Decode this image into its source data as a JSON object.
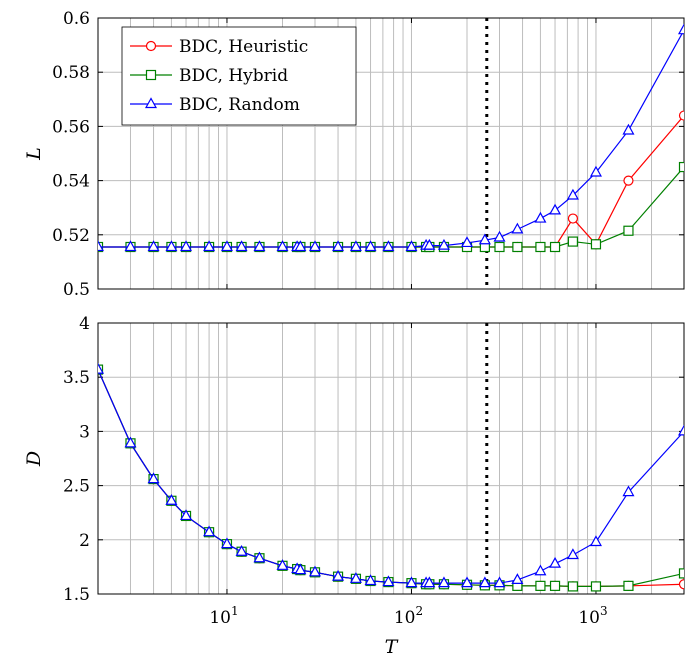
{
  "chart_data": [
    {
      "type": "line",
      "id": "top",
      "ylabel": "L",
      "xscale": "log",
      "xlim": [
        2,
        3000
      ],
      "ylim": [
        0.5,
        0.6
      ],
      "yticks": [
        "0.5",
        "0.52",
        "0.54",
        "0.56",
        "0.58",
        "0.6"
      ],
      "ytick_values": [
        0.5,
        0.52,
        0.54,
        0.56,
        0.58,
        0.6
      ],
      "grid": true,
      "vline_x": 256,
      "legend_position": "top-left",
      "series": [
        {
          "name": "BDC, Heuristic",
          "color": "#ff0000",
          "marker": "circle",
          "x": [
            2,
            3,
            4,
            5,
            6,
            8,
            10,
            12,
            15,
            20,
            24,
            25,
            30,
            40,
            50,
            60,
            75,
            100,
            120,
            125,
            150,
            200,
            250,
            300,
            375,
            500,
            600,
            750,
            1000,
            1500,
            3000
          ],
          "y": [
            0.5155,
            0.5155,
            0.5155,
            0.5155,
            0.5155,
            0.5155,
            0.5155,
            0.5155,
            0.5155,
            0.5155,
            0.5155,
            0.5155,
            0.5155,
            0.5155,
            0.5155,
            0.5155,
            0.5155,
            0.5155,
            0.5155,
            0.5155,
            0.5155,
            0.5155,
            0.5155,
            0.5155,
            0.5155,
            0.5155,
            0.5155,
            0.526,
            0.5165,
            0.54,
            0.564
          ]
        },
        {
          "name": "BDC, Hybrid",
          "color": "#008000",
          "marker": "square",
          "x": [
            2,
            3,
            4,
            5,
            6,
            8,
            10,
            12,
            15,
            20,
            24,
            25,
            30,
            40,
            50,
            60,
            75,
            100,
            120,
            125,
            150,
            200,
            250,
            300,
            375,
            500,
            600,
            750,
            1000,
            1500,
            3000
          ],
          "y": [
            0.5155,
            0.5155,
            0.5155,
            0.5155,
            0.5155,
            0.5155,
            0.5155,
            0.5155,
            0.5155,
            0.5155,
            0.5155,
            0.5155,
            0.5155,
            0.5155,
            0.5155,
            0.5155,
            0.5155,
            0.5155,
            0.5155,
            0.5155,
            0.5155,
            0.5155,
            0.5155,
            0.5155,
            0.5155,
            0.5155,
            0.5155,
            0.5175,
            0.5165,
            0.5215,
            0.545
          ]
        },
        {
          "name": "BDC, Random",
          "color": "#0000ff",
          "marker": "triangle",
          "x": [
            2,
            3,
            4,
            5,
            6,
            8,
            10,
            12,
            15,
            20,
            24,
            25,
            30,
            40,
            50,
            60,
            75,
            100,
            120,
            125,
            150,
            200,
            250,
            300,
            375,
            500,
            600,
            750,
            1000,
            1500,
            3000
          ],
          "y": [
            0.5155,
            0.5155,
            0.5155,
            0.5155,
            0.5155,
            0.5155,
            0.5155,
            0.5155,
            0.5155,
            0.5155,
            0.5155,
            0.5155,
            0.5155,
            0.5155,
            0.5155,
            0.5155,
            0.5155,
            0.5155,
            0.516,
            0.516,
            0.516,
            0.517,
            0.518,
            0.519,
            0.522,
            0.526,
            0.529,
            0.5345,
            0.543,
            0.5585,
            0.5955
          ]
        }
      ]
    },
    {
      "type": "line",
      "id": "bottom",
      "xlabel": "T",
      "ylabel": "D",
      "xscale": "log",
      "xlim": [
        2,
        3000
      ],
      "ylim": [
        1.5,
        4
      ],
      "yticks": [
        "1.5",
        "2",
        "2.5",
        "3",
        "3.5",
        "4"
      ],
      "ytick_values": [
        1.5,
        2,
        2.5,
        3,
        3.5,
        4
      ],
      "xticks": [
        {
          "value": 10,
          "base": "10",
          "exp": "1"
        },
        {
          "value": 100,
          "base": "10",
          "exp": "2"
        },
        {
          "value": 1000,
          "base": "10",
          "exp": "3"
        }
      ],
      "grid": true,
      "vline_x": 256,
      "series": [
        {
          "name": "BDC, Heuristic",
          "color": "#ff0000",
          "marker": "circle",
          "x": [
            2,
            3,
            4,
            5,
            6,
            8,
            10,
            12,
            15,
            20,
            24,
            25,
            30,
            40,
            50,
            60,
            75,
            100,
            120,
            125,
            150,
            200,
            250,
            300,
            375,
            500,
            600,
            750,
            1000,
            1500,
            3000
          ],
          "y": [
            3.57,
            2.89,
            2.56,
            2.36,
            2.22,
            2.07,
            1.96,
            1.89,
            1.83,
            1.76,
            1.73,
            1.72,
            1.7,
            1.66,
            1.64,
            1.62,
            1.61,
            1.6,
            1.59,
            1.59,
            1.59,
            1.585,
            1.58,
            1.58,
            1.575,
            1.575,
            1.575,
            1.57,
            1.57,
            1.575,
            1.59
          ]
        },
        {
          "name": "BDC, Hybrid",
          "color": "#008000",
          "marker": "square",
          "x": [
            2,
            3,
            4,
            5,
            6,
            8,
            10,
            12,
            15,
            20,
            24,
            25,
            30,
            40,
            50,
            60,
            75,
            100,
            120,
            125,
            150,
            200,
            250,
            300,
            375,
            500,
            600,
            750,
            1000,
            1500,
            3000
          ],
          "y": [
            3.57,
            2.89,
            2.56,
            2.36,
            2.22,
            2.07,
            1.96,
            1.89,
            1.83,
            1.76,
            1.73,
            1.72,
            1.7,
            1.66,
            1.64,
            1.62,
            1.61,
            1.6,
            1.59,
            1.59,
            1.59,
            1.585,
            1.58,
            1.58,
            1.575,
            1.575,
            1.575,
            1.57,
            1.57,
            1.575,
            1.69
          ]
        },
        {
          "name": "BDC, Random",
          "color": "#0000ff",
          "marker": "triangle",
          "x": [
            2,
            3,
            4,
            5,
            6,
            8,
            10,
            12,
            15,
            20,
            24,
            25,
            30,
            40,
            50,
            60,
            75,
            100,
            120,
            125,
            150,
            200,
            250,
            300,
            375,
            500,
            600,
            750,
            1000,
            1500,
            3000
          ],
          "y": [
            3.57,
            2.89,
            2.56,
            2.36,
            2.22,
            2.07,
            1.96,
            1.89,
            1.83,
            1.76,
            1.73,
            1.72,
            1.7,
            1.66,
            1.64,
            1.62,
            1.61,
            1.6,
            1.6,
            1.6,
            1.6,
            1.6,
            1.6,
            1.6,
            1.63,
            1.71,
            1.78,
            1.86,
            1.98,
            2.44,
            3.0
          ]
        }
      ]
    }
  ]
}
